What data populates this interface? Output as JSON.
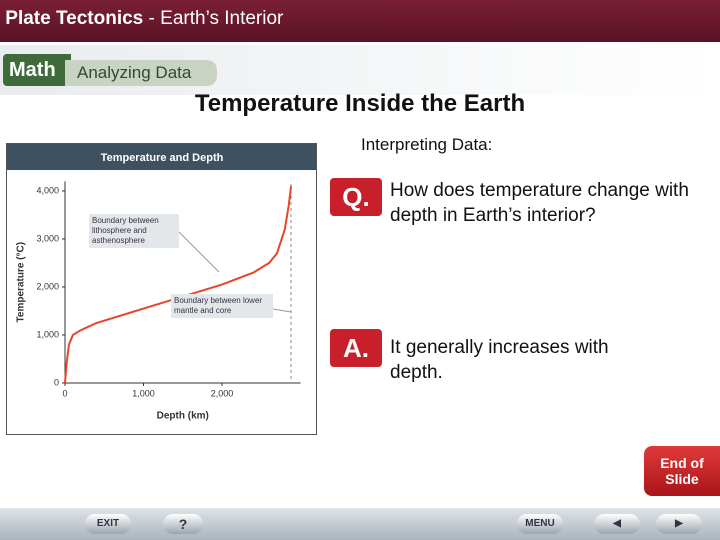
{
  "header": {
    "title": "Plate Tectonics",
    "subtitle": "- Earth’s Interior"
  },
  "tab": {
    "label": "Math",
    "title": "Analyzing Data"
  },
  "title": "Temperature Inside the Earth",
  "chart_data": {
    "type": "line",
    "title": "Temperature and Depth",
    "x_label": "Depth (km)",
    "y_label": "Temperature (°C)",
    "x": [
      0,
      20,
      50,
      100,
      200,
      400,
      700,
      1000,
      1500,
      2000,
      2400,
      2600,
      2700,
      2800,
      2850,
      2880
    ],
    "series": [
      {
        "name": "Temperature",
        "color": "#e8442a",
        "values": [
          0,
          400,
          800,
          1000,
          1100,
          1250,
          1400,
          1550,
          1800,
          2050,
          2300,
          2500,
          2700,
          3200,
          3700,
          4100
        ]
      }
    ],
    "xlim": [
      0,
      3000
    ],
    "xticks": [
      0,
      {
        "value": 1000,
        "label": "1,000"
      },
      {
        "value": 2000,
        "label": "2,000"
      }
    ],
    "ylim": [
      0,
      4200
    ],
    "yticks": [
      0,
      {
        "value": 1000,
        "label": "1,000"
      },
      {
        "value": 2000,
        "label": "2,000"
      },
      {
        "value": 3000,
        "label": "3,000"
      },
      {
        "value": 4000,
        "label": "4,000"
      }
    ],
    "annotations": [
      "Boundary between lithosphere and asthenosphere",
      "Boundary between lower mantle and core"
    ]
  },
  "interpreting": {
    "heading": "Interpreting Data:",
    "question_label": "Q.",
    "question": "How does temperature change with depth in Earth’s interior?",
    "answer_label": "A.",
    "answer": "It generally increases with depth."
  },
  "end_button": "End of Slide",
  "nav": {
    "exit": "EXIT",
    "help": "?",
    "menu": "MENU"
  }
}
